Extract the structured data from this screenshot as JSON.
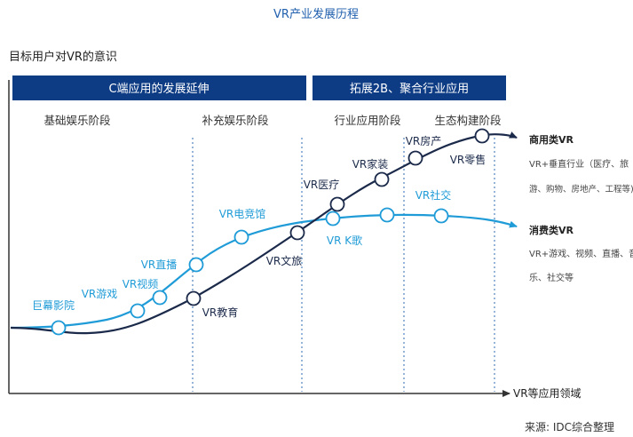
{
  "title": "VR产业发展历程",
  "y_axis_label": "目标用户对VR的意识",
  "x_axis_label": "VR等应用领域",
  "source": "来源: IDC综合整理",
  "banners": {
    "left": "C端应用的发展延伸",
    "right": "拓展2B、聚合行业应用"
  },
  "stages": {
    "s1": "基础娱乐阶段",
    "s2": "补充娱乐阶段",
    "s3": "行业应用阶段",
    "s4": "生态构建阶段"
  },
  "labels": {
    "jumu": "巨幕影院",
    "youxi": "VR游戏",
    "shipin": "VR视频",
    "zhibo": "VR直播",
    "dianjing": "VR电竞馆",
    "kge": "VR K歌",
    "shejiao": "VR社交",
    "jiaoyu": "VR教育",
    "wenlv": "VR文旅",
    "yiliao": "VR医疗",
    "jiazhuang": "VR家装",
    "fangchan": "VR房产",
    "lingshou": "VR零售"
  },
  "legend": {
    "commercial_title": "商用类VR",
    "commercial_line1": "VR+垂直行业（医疗、旅",
    "commercial_line2": "游、购物、房地产、工程等)",
    "consumer_title": "消费类VR",
    "consumer_line1": "VR+游戏、视频、直播、音",
    "consumer_line2": "乐、社交等"
  },
  "colors": {
    "navy": "#1b2a4a",
    "light_blue": "#1f9bd7",
    "banner": "#0d3b84",
    "axis": "#333333",
    "title": "#1f5fae"
  }
}
